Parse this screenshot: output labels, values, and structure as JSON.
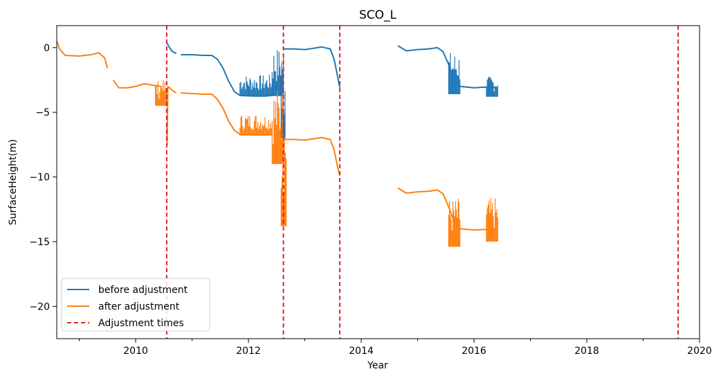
{
  "chart_data": {
    "type": "line",
    "title": "SCO_L",
    "xlabel": "Year",
    "ylabel": "SurfaceHeight(m)",
    "xlim": [
      2008.6,
      2020.0
    ],
    "ylim": [
      -22.5,
      1.7
    ],
    "xticks": [
      2010,
      2012,
      2014,
      2016,
      2018,
      2020
    ],
    "xtick_labels": [
      "2010",
      "2012",
      "2014",
      "2016",
      "2018",
      "2020"
    ],
    "yticks": [
      0,
      -5,
      -10,
      -15,
      -20
    ],
    "ytick_labels": [
      "0",
      "−5",
      "−10",
      "−15",
      "−20"
    ],
    "legend_position": "lower-left",
    "legend": [
      "before adjustment",
      "after adjustment",
      "Adjustment times"
    ],
    "adjustment_times": [
      2010.55,
      2012.62,
      2013.62,
      2019.62
    ],
    "series": [
      {
        "name": "before adjustment",
        "color": "#1f77b4",
        "segments": [
          [
            [
              2010.55,
              0.4
            ],
            [
              2010.6,
              0.0
            ],
            [
              2010.65,
              -0.3
            ],
            [
              2010.72,
              -0.45
            ]
          ],
          [
            [
              2010.8,
              -0.55
            ],
            [
              2011.0,
              -0.55
            ],
            [
              2011.2,
              -0.6
            ],
            [
              2011.35,
              -0.6
            ],
            [
              2011.45,
              -0.9
            ],
            [
              2011.55,
              -1.6
            ],
            [
              2011.65,
              -2.6
            ],
            [
              2011.75,
              -3.4
            ],
            [
              2011.85,
              -3.7
            ],
            [
              2012.1,
              -3.75
            ],
            [
              2012.3,
              -3.75
            ],
            [
              2012.42,
              -3.7
            ]
          ],
          [
            [
              2012.62,
              -0.1
            ],
            [
              2012.8,
              -0.1
            ],
            [
              2013.0,
              -0.15
            ],
            [
              2013.15,
              -0.05
            ],
            [
              2013.3,
              0.05
            ],
            [
              2013.45,
              -0.1
            ],
            [
              2013.52,
              -0.9
            ],
            [
              2013.58,
              -2.2
            ],
            [
              2013.62,
              -3.1
            ]
          ],
          [
            [
              2014.65,
              0.15
            ],
            [
              2014.8,
              -0.25
            ],
            [
              2015.0,
              -0.15
            ],
            [
              2015.2,
              -0.1
            ],
            [
              2015.35,
              0.0
            ],
            [
              2015.45,
              -0.3
            ],
            [
              2015.55,
              -1.3
            ],
            [
              2015.65,
              -2.5
            ],
            [
              2015.75,
              -3.0
            ],
            [
              2016.0,
              -3.1
            ],
            [
              2016.2,
              -3.05
            ],
            [
              2016.42,
              -3.1
            ]
          ]
        ],
        "noise_bands": [
          [
            2011.85,
            2012.42,
            -3.75,
            -2.1
          ],
          [
            2012.42,
            2012.62,
            -3.75,
            0.0
          ],
          [
            2012.58,
            2012.65,
            -7.0,
            -0.5
          ],
          [
            2015.55,
            2015.75,
            -3.6,
            -0.3
          ],
          [
            2016.22,
            2016.42,
            -3.8,
            -2.2
          ]
        ]
      },
      {
        "name": "after adjustment",
        "color": "#ff7f0e",
        "segments": [
          [
            [
              2008.6,
              0.5
            ],
            [
              2008.65,
              -0.1
            ],
            [
              2008.75,
              -0.6
            ],
            [
              2009.0,
              -0.65
            ],
            [
              2009.2,
              -0.55
            ],
            [
              2009.35,
              -0.4
            ],
            [
              2009.45,
              -0.8
            ],
            [
              2009.5,
              -1.6
            ]
          ],
          [
            [
              2009.6,
              -2.5
            ],
            [
              2009.7,
              -3.1
            ],
            [
              2009.85,
              -3.1
            ],
            [
              2010.0,
              -3.0
            ],
            [
              2010.15,
              -2.8
            ],
            [
              2010.3,
              -2.9
            ],
            [
              2010.45,
              -3.0
            ],
            [
              2010.5,
              -4.2
            ]
          ],
          [
            [
              2010.55,
              -6.0
            ],
            [
              2010.56,
              -7.5
            ],
            [
              2010.57,
              -3.0
            ],
            [
              2010.65,
              -3.3
            ],
            [
              2010.72,
              -3.5
            ]
          ],
          [
            [
              2010.8,
              -3.5
            ],
            [
              2011.0,
              -3.55
            ],
            [
              2011.2,
              -3.6
            ],
            [
              2011.35,
              -3.6
            ],
            [
              2011.45,
              -4.0
            ],
            [
              2011.55,
              -4.7
            ],
            [
              2011.65,
              -5.7
            ],
            [
              2011.75,
              -6.4
            ],
            [
              2011.85,
              -6.7
            ],
            [
              2012.1,
              -6.75
            ],
            [
              2012.3,
              -6.75
            ],
            [
              2012.42,
              -6.7
            ]
          ],
          [
            [
              2012.62,
              -7.1
            ],
            [
              2012.8,
              -7.1
            ],
            [
              2013.0,
              -7.15
            ],
            [
              2013.15,
              -7.05
            ],
            [
              2013.3,
              -6.95
            ],
            [
              2013.45,
              -7.1
            ],
            [
              2013.52,
              -7.9
            ],
            [
              2013.58,
              -9.2
            ],
            [
              2013.62,
              -9.9
            ]
          ],
          [
            [
              2014.65,
              -10.85
            ],
            [
              2014.8,
              -11.25
            ],
            [
              2015.0,
              -11.15
            ],
            [
              2015.2,
              -11.1
            ],
            [
              2015.35,
              -11.0
            ],
            [
              2015.45,
              -11.3
            ],
            [
              2015.55,
              -12.3
            ],
            [
              2015.65,
              -13.5
            ],
            [
              2015.75,
              -14.0
            ],
            [
              2016.0,
              -14.1
            ],
            [
              2016.2,
              -14.05
            ],
            [
              2016.42,
              -14.1
            ]
          ]
        ],
        "noise_bands": [
          [
            2010.35,
            2010.55,
            -4.5,
            -2.5
          ],
          [
            2011.85,
            2012.42,
            -6.8,
            -5.1
          ],
          [
            2012.42,
            2012.62,
            -9.0,
            -3.0
          ],
          [
            2012.58,
            2012.67,
            -13.8,
            -4.0
          ],
          [
            2015.55,
            2015.75,
            -15.4,
            -11.6
          ],
          [
            2016.22,
            2016.42,
            -15.0,
            -11.6
          ]
        ]
      }
    ]
  }
}
